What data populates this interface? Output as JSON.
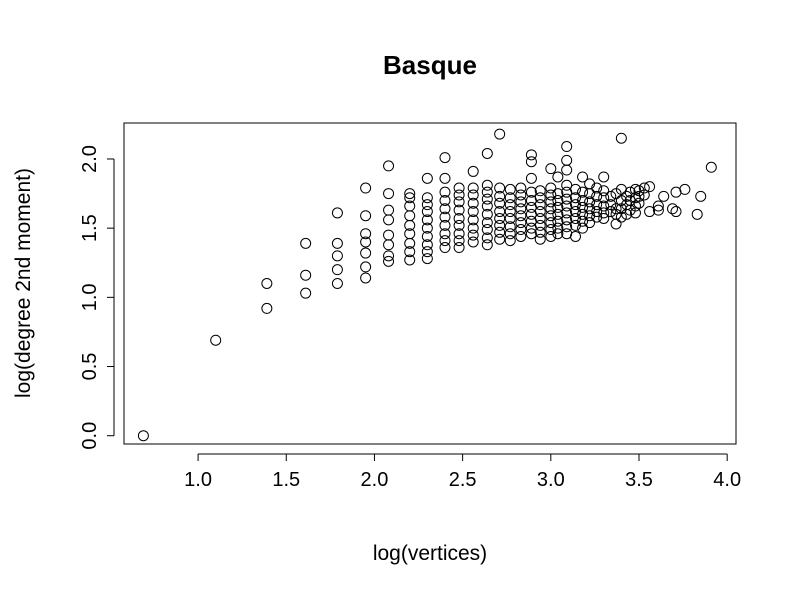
{
  "chart_data": {
    "type": "scatter",
    "title": "Basque",
    "xlabel": "log(vertices)",
    "ylabel": "log(degree 2nd moment)",
    "xlim": [
      0.58,
      4.05
    ],
    "ylim": [
      -0.06,
      2.26
    ],
    "x_ticks": [
      1.0,
      1.5,
      2.0,
      2.5,
      3.0,
      3.5,
      4.0
    ],
    "x_tick_labels": [
      "1.0",
      "1.5",
      "2.0",
      "2.5",
      "3.0",
      "3.5",
      "4.0"
    ],
    "y_ticks": [
      0.0,
      0.5,
      1.0,
      1.5,
      2.0
    ],
    "y_tick_labels": [
      "0.0",
      "0.5",
      "1.0",
      "1.5",
      "2.0"
    ],
    "grid": false,
    "marker": "open-circle",
    "points": [
      [
        0.69,
        0.0
      ],
      [
        1.1,
        0.69
      ],
      [
        1.39,
        1.1
      ],
      [
        1.39,
        0.92
      ],
      [
        1.61,
        1.39
      ],
      [
        1.61,
        1.16
      ],
      [
        1.61,
        1.03
      ],
      [
        1.79,
        1.61
      ],
      [
        1.79,
        1.39
      ],
      [
        1.79,
        1.3
      ],
      [
        1.79,
        1.2
      ],
      [
        1.79,
        1.1
      ],
      [
        1.95,
        1.79
      ],
      [
        1.95,
        1.59
      ],
      [
        1.95,
        1.46
      ],
      [
        1.95,
        1.4
      ],
      [
        1.95,
        1.32
      ],
      [
        1.95,
        1.22
      ],
      [
        1.95,
        1.14
      ],
      [
        2.08,
        1.95
      ],
      [
        2.08,
        1.75
      ],
      [
        2.08,
        1.63
      ],
      [
        2.08,
        1.56
      ],
      [
        2.08,
        1.45
      ],
      [
        2.08,
        1.38
      ],
      [
        2.08,
        1.3
      ],
      [
        2.08,
        1.26
      ],
      [
        2.2,
        1.75
      ],
      [
        2.2,
        1.72
      ],
      [
        2.2,
        1.66
      ],
      [
        2.2,
        1.59
      ],
      [
        2.2,
        1.52
      ],
      [
        2.2,
        1.46
      ],
      [
        2.2,
        1.39
      ],
      [
        2.2,
        1.33
      ],
      [
        2.2,
        1.27
      ],
      [
        2.3,
        1.86
      ],
      [
        2.3,
        1.72
      ],
      [
        2.3,
        1.67
      ],
      [
        2.3,
        1.62
      ],
      [
        2.3,
        1.56
      ],
      [
        2.3,
        1.5
      ],
      [
        2.3,
        1.44
      ],
      [
        2.3,
        1.38
      ],
      [
        2.3,
        1.33
      ],
      [
        2.3,
        1.28
      ],
      [
        2.4,
        2.01
      ],
      [
        2.4,
        1.86
      ],
      [
        2.4,
        1.76
      ],
      [
        2.4,
        1.7
      ],
      [
        2.4,
        1.64
      ],
      [
        2.4,
        1.58
      ],
      [
        2.4,
        1.52
      ],
      [
        2.4,
        1.46
      ],
      [
        2.4,
        1.41
      ],
      [
        2.4,
        1.36
      ],
      [
        2.48,
        1.79
      ],
      [
        2.48,
        1.74
      ],
      [
        2.48,
        1.69
      ],
      [
        2.48,
        1.63
      ],
      [
        2.48,
        1.57
      ],
      [
        2.48,
        1.52
      ],
      [
        2.48,
        1.46
      ],
      [
        2.48,
        1.41
      ],
      [
        2.48,
        1.36
      ],
      [
        2.56,
        1.91
      ],
      [
        2.56,
        1.79
      ],
      [
        2.56,
        1.74
      ],
      [
        2.56,
        1.68
      ],
      [
        2.56,
        1.62
      ],
      [
        2.56,
        1.56
      ],
      [
        2.56,
        1.5
      ],
      [
        2.56,
        1.45
      ],
      [
        2.56,
        1.4
      ],
      [
        2.64,
        2.04
      ],
      [
        2.64,
        1.81
      ],
      [
        2.64,
        1.76
      ],
      [
        2.64,
        1.71
      ],
      [
        2.64,
        1.66
      ],
      [
        2.64,
        1.6
      ],
      [
        2.64,
        1.54
      ],
      [
        2.64,
        1.49
      ],
      [
        2.64,
        1.43
      ],
      [
        2.64,
        1.38
      ],
      [
        2.71,
        2.18
      ],
      [
        2.71,
        1.79
      ],
      [
        2.71,
        1.73
      ],
      [
        2.71,
        1.68
      ],
      [
        2.71,
        1.62
      ],
      [
        2.71,
        1.57
      ],
      [
        2.71,
        1.52
      ],
      [
        2.71,
        1.47
      ],
      [
        2.71,
        1.42
      ],
      [
        2.77,
        1.78
      ],
      [
        2.77,
        1.72
      ],
      [
        2.77,
        1.67
      ],
      [
        2.77,
        1.62
      ],
      [
        2.77,
        1.57
      ],
      [
        2.77,
        1.51
      ],
      [
        2.77,
        1.46
      ],
      [
        2.77,
        1.41
      ],
      [
        2.83,
        1.79
      ],
      [
        2.83,
        1.74
      ],
      [
        2.83,
        1.69
      ],
      [
        2.83,
        1.64
      ],
      [
        2.83,
        1.59
      ],
      [
        2.83,
        1.54
      ],
      [
        2.83,
        1.49
      ],
      [
        2.83,
        1.44
      ],
      [
        2.89,
        2.03
      ],
      [
        2.89,
        1.98
      ],
      [
        2.89,
        1.86
      ],
      [
        2.89,
        1.76
      ],
      [
        2.89,
        1.7
      ],
      [
        2.89,
        1.65
      ],
      [
        2.89,
        1.6
      ],
      [
        2.89,
        1.55
      ],
      [
        2.89,
        1.5
      ],
      [
        2.89,
        1.46
      ],
      [
        2.94,
        1.77
      ],
      [
        2.94,
        1.72
      ],
      [
        2.94,
        1.67
      ],
      [
        2.94,
        1.62
      ],
      [
        2.94,
        1.57
      ],
      [
        2.94,
        1.52
      ],
      [
        2.94,
        1.47
      ],
      [
        2.94,
        1.42
      ],
      [
        3.0,
        1.93
      ],
      [
        3.0,
        1.79
      ],
      [
        3.0,
        1.74
      ],
      [
        3.0,
        1.69
      ],
      [
        3.0,
        1.64
      ],
      [
        3.0,
        1.59
      ],
      [
        3.0,
        1.54
      ],
      [
        3.0,
        1.49
      ],
      [
        3.0,
        1.44
      ],
      [
        3.04,
        1.87
      ],
      [
        3.04,
        1.75
      ],
      [
        3.04,
        1.7
      ],
      [
        3.04,
        1.65
      ],
      [
        3.04,
        1.6
      ],
      [
        3.04,
        1.55
      ],
      [
        3.04,
        1.5
      ],
      [
        3.04,
        1.46
      ],
      [
        3.09,
        2.09
      ],
      [
        3.09,
        1.99
      ],
      [
        3.09,
        1.92
      ],
      [
        3.09,
        1.81
      ],
      [
        3.09,
        1.76
      ],
      [
        3.09,
        1.71
      ],
      [
        3.09,
        1.66
      ],
      [
        3.09,
        1.61
      ],
      [
        3.09,
        1.56
      ],
      [
        3.09,
        1.51
      ],
      [
        3.09,
        1.46
      ],
      [
        3.14,
        1.78
      ],
      [
        3.14,
        1.72
      ],
      [
        3.14,
        1.67
      ],
      [
        3.14,
        1.62
      ],
      [
        3.14,
        1.57
      ],
      [
        3.14,
        1.52
      ],
      [
        3.14,
        1.44
      ],
      [
        3.18,
        1.87
      ],
      [
        3.18,
        1.76
      ],
      [
        3.18,
        1.7
      ],
      [
        3.18,
        1.65
      ],
      [
        3.18,
        1.6
      ],
      [
        3.18,
        1.55
      ],
      [
        3.18,
        1.5
      ],
      [
        3.22,
        1.82
      ],
      [
        3.22,
        1.75
      ],
      [
        3.22,
        1.69
      ],
      [
        3.22,
        1.64
      ],
      [
        3.22,
        1.59
      ],
      [
        3.22,
        1.54
      ],
      [
        3.26,
        1.79
      ],
      [
        3.26,
        1.73
      ],
      [
        3.26,
        1.67
      ],
      [
        3.26,
        1.62
      ],
      [
        3.26,
        1.58
      ],
      [
        3.3,
        1.87
      ],
      [
        3.3,
        1.77
      ],
      [
        3.3,
        1.72
      ],
      [
        3.3,
        1.66
      ],
      [
        3.3,
        1.61
      ],
      [
        3.3,
        1.57
      ],
      [
        3.34,
        1.73
      ],
      [
        3.34,
        1.67
      ],
      [
        3.34,
        1.62
      ],
      [
        3.37,
        1.75
      ],
      [
        3.37,
        1.64
      ],
      [
        3.37,
        1.6
      ],
      [
        3.37,
        1.53
      ],
      [
        3.4,
        2.15
      ],
      [
        3.4,
        1.78
      ],
      [
        3.4,
        1.7
      ],
      [
        3.4,
        1.64
      ],
      [
        3.4,
        1.58
      ],
      [
        3.43,
        1.73
      ],
      [
        3.43,
        1.67
      ],
      [
        3.43,
        1.6
      ],
      [
        3.45,
        1.76
      ],
      [
        3.45,
        1.7
      ],
      [
        3.45,
        1.63
      ],
      [
        3.48,
        1.78
      ],
      [
        3.48,
        1.72
      ],
      [
        3.48,
        1.66
      ],
      [
        3.48,
        1.61
      ],
      [
        3.5,
        1.77
      ],
      [
        3.5,
        1.73
      ],
      [
        3.5,
        1.68
      ],
      [
        3.53,
        1.79
      ],
      [
        3.53,
        1.74
      ],
      [
        3.56,
        1.8
      ],
      [
        3.56,
        1.62
      ],
      [
        3.61,
        1.66
      ],
      [
        3.61,
        1.63
      ],
      [
        3.64,
        1.73
      ],
      [
        3.69,
        1.64
      ],
      [
        3.71,
        1.62
      ],
      [
        3.71,
        1.76
      ],
      [
        3.76,
        1.78
      ],
      [
        3.83,
        1.6
      ],
      [
        3.85,
        1.73
      ],
      [
        3.91,
        1.94
      ]
    ]
  }
}
